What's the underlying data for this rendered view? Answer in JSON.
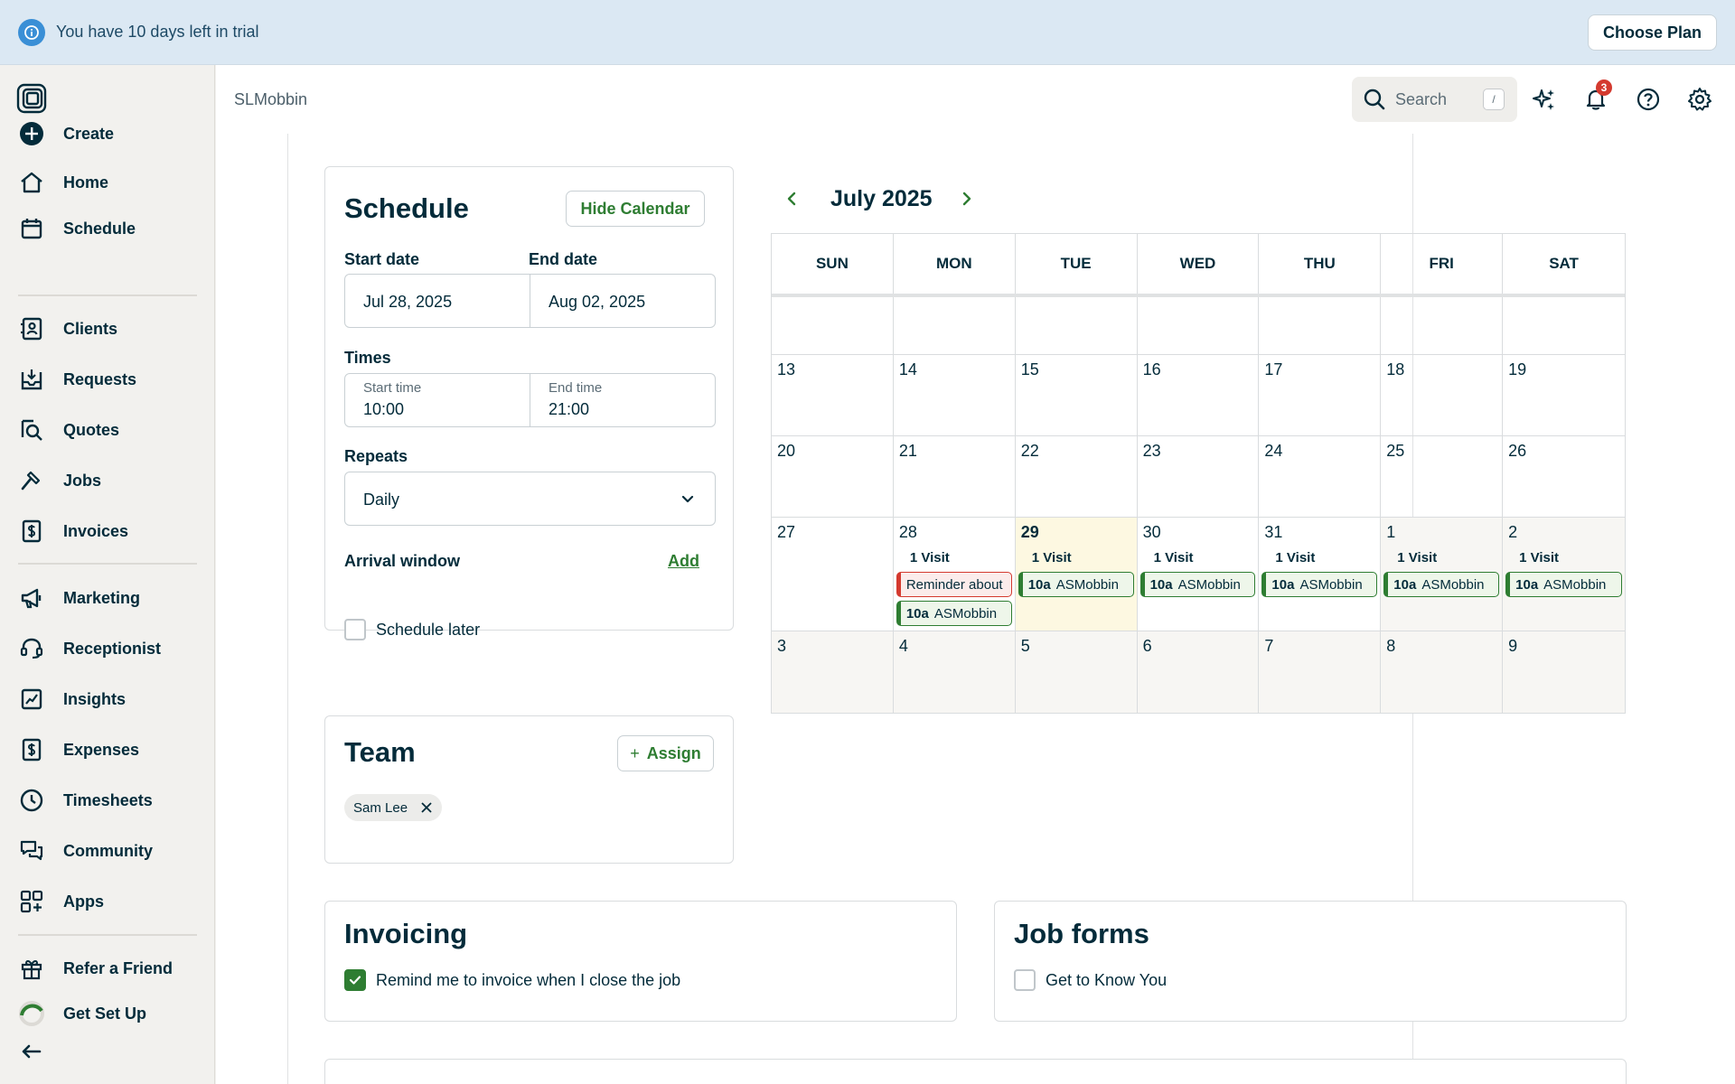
{
  "banner": {
    "trial_text": "You have 10 days left in trial",
    "choose_plan": "Choose Plan"
  },
  "header": {
    "company": "SLMobbin",
    "search_placeholder": "Search",
    "search_shortcut": "/",
    "notification_count": "3"
  },
  "sidebar": {
    "items": [
      {
        "id": "create",
        "label": "Create"
      },
      {
        "id": "home",
        "label": "Home"
      },
      {
        "id": "schedule",
        "label": "Schedule"
      },
      {
        "id": "clients",
        "label": "Clients"
      },
      {
        "id": "requests",
        "label": "Requests"
      },
      {
        "id": "quotes",
        "label": "Quotes"
      },
      {
        "id": "jobs",
        "label": "Jobs"
      },
      {
        "id": "invoices",
        "label": "Invoices"
      },
      {
        "id": "marketing",
        "label": "Marketing"
      },
      {
        "id": "receptionist",
        "label": "Receptionist"
      },
      {
        "id": "insights",
        "label": "Insights"
      },
      {
        "id": "expenses",
        "label": "Expenses"
      },
      {
        "id": "timesheets",
        "label": "Timesheets"
      },
      {
        "id": "community",
        "label": "Community"
      },
      {
        "id": "apps",
        "label": "Apps"
      },
      {
        "id": "refer",
        "label": "Refer a Friend"
      },
      {
        "id": "setup",
        "label": "Get Set Up"
      }
    ]
  },
  "schedule": {
    "title": "Schedule",
    "hide_calendar": "Hide Calendar",
    "start_date_label": "Start date",
    "end_date_label": "End date",
    "start_date": "Jul 28, 2025",
    "end_date": "Aug 02, 2025",
    "times_label": "Times",
    "start_time_label": "Start time",
    "start_time": "10:00",
    "end_time_label": "End time",
    "end_time": "21:00",
    "repeats_label": "Repeats",
    "repeats_value": "Daily",
    "arrival_window_label": "Arrival window",
    "arrival_add": "Add",
    "schedule_later": "Schedule later"
  },
  "team": {
    "title": "Team",
    "assign": "Assign",
    "members": [
      "Sam Lee"
    ]
  },
  "invoicing": {
    "title": "Invoicing",
    "remind_label": "Remind me to invoice when I close the job",
    "remind_checked": true
  },
  "job_forms": {
    "title": "Job forms",
    "form_label": "Get to Know You",
    "form_checked": false
  },
  "calendar": {
    "month": "July 2025",
    "weekdays": [
      "SUN",
      "MON",
      "TUE",
      "WED",
      "THU",
      "FRI",
      "SAT"
    ],
    "weeks": [
      [
        "",
        "",
        "",
        "",
        "",
        "",
        ""
      ],
      [
        "13",
        "14",
        "15",
        "16",
        "17",
        "18",
        "19"
      ],
      [
        "20",
        "21",
        "22",
        "23",
        "24",
        "25",
        "26"
      ],
      [
        "27",
        "28",
        "29",
        "30",
        "31",
        "1",
        "2"
      ],
      [
        "3",
        "4",
        "5",
        "6",
        "7",
        "8",
        "9"
      ]
    ],
    "visit_label": "1 Visit",
    "event_time": "10a",
    "event_client": "ASMobbin",
    "reminder_text": "Reminder about"
  },
  "colors": {
    "accent_green": "#2e7d32",
    "reminder_red": "#d43a2f",
    "today_bg": "#fdf8e1"
  }
}
